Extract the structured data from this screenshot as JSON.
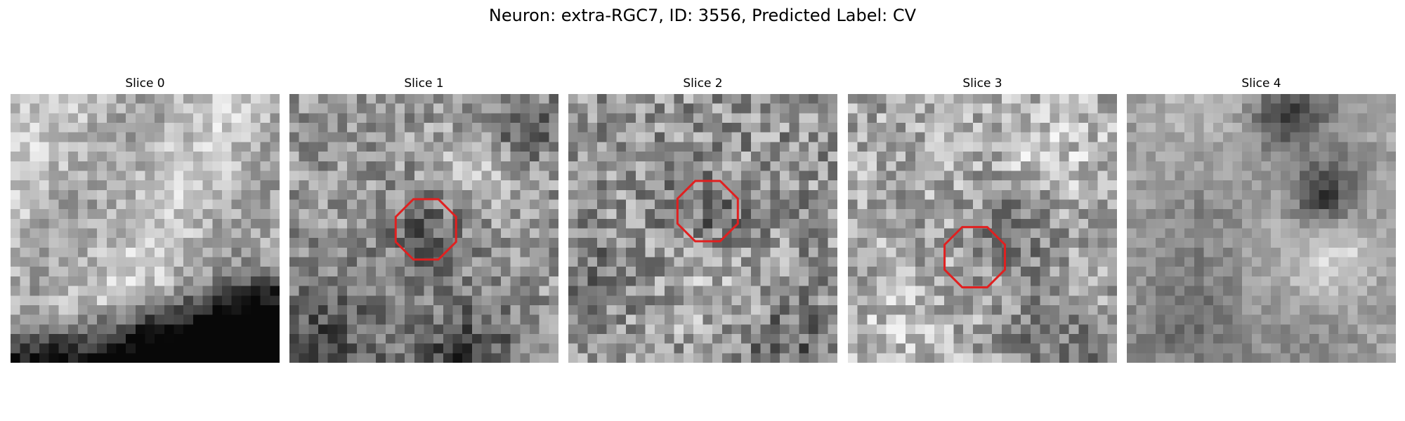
{
  "title": "Neuron: extra-RGC7, ID: 3556, Predicted Label: CV",
  "slices": [
    {
      "label": "Slice 0",
      "has_roi": false
    },
    {
      "label": "Slice 1",
      "has_roi": true
    },
    {
      "label": "Slice 2",
      "has_roi": true
    },
    {
      "label": "Slice 3",
      "has_roi": true
    },
    {
      "label": "Slice 4",
      "has_roi": false
    }
  ],
  "colors": {
    "roi_outline": "#e02020",
    "background": "#ffffff"
  },
  "image": {
    "colormap": "grayscale",
    "grid_cells": 28
  }
}
